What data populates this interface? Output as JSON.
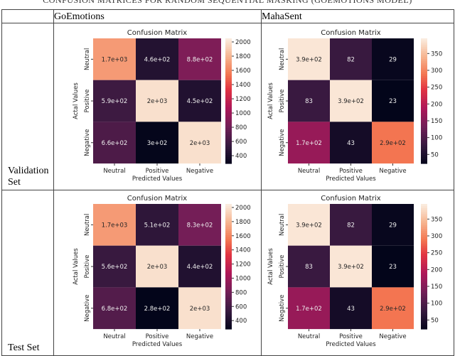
{
  "caption": "CONFUSION MATRICES FOR RANDOM SEQUENTIAL MASKING (GOEMOTIONS MODEL)",
  "columns": [
    "GoEmotions",
    "MahaSent"
  ],
  "rows": [
    "Validation Set",
    "Test Set"
  ],
  "chart_data": [
    {
      "type": "heatmap",
      "dataset": "GoEmotions",
      "split": "Validation Set",
      "title": "Confusion Matrix",
      "xlabel": "Predicted Values",
      "ylabel": "Actal Values",
      "x_categories": [
        "Neutral",
        "Positive",
        "Negative"
      ],
      "y_categories": [
        "Neutral",
        "Positive",
        "Negative"
      ],
      "values": [
        [
          1700,
          460,
          880
        ],
        [
          590,
          2000,
          450
        ],
        [
          660,
          300,
          2000
        ]
      ],
      "annotations": [
        [
          "1.7e+03",
          "4.6e+02",
          "8.8e+02"
        ],
        [
          "5.9e+02",
          "2e+03",
          "4.5e+02"
        ],
        [
          "6.6e+02",
          "3e+02",
          "2e+03"
        ]
      ],
      "colorbar_range": [
        290,
        2050
      ],
      "colorbar_ticks": [
        400,
        600,
        800,
        1000,
        1200,
        1400,
        1600,
        1800,
        2000
      ],
      "colormap": "rocket"
    },
    {
      "type": "heatmap",
      "dataset": "MahaSent",
      "split": "Validation Set",
      "title": "Confusion Matrix",
      "xlabel": "Predicted Values",
      "ylabel": "Actal Values",
      "x_categories": [
        "Neutral",
        "Positive",
        "Negative"
      ],
      "y_categories": [
        "Neutral",
        "Positive",
        "Negative"
      ],
      "values": [
        [
          390,
          82,
          29
        ],
        [
          83,
          390,
          23
        ],
        [
          170,
          43,
          290
        ]
      ],
      "annotations": [
        [
          "3.9e+02",
          "82",
          "29"
        ],
        [
          "83",
          "3.9e+02",
          "23"
        ],
        [
          "1.7e+02",
          "43",
          "2.9e+02"
        ]
      ],
      "colorbar_range": [
        23,
        395
      ],
      "colorbar_ticks": [
        50,
        100,
        150,
        200,
        250,
        300,
        350
      ],
      "colormap": "rocket"
    },
    {
      "type": "heatmap",
      "dataset": "GoEmotions",
      "split": "Test Set",
      "title": "Confusion Matrix",
      "xlabel": "Predicted Values",
      "ylabel": "Actal Values",
      "x_categories": [
        "Neutral",
        "Positive",
        "Negative"
      ],
      "y_categories": [
        "Neutral",
        "Positive",
        "Negative"
      ],
      "values": [
        [
          1700,
          510,
          830
        ],
        [
          560,
          2000,
          440
        ],
        [
          680,
          280,
          2000
        ]
      ],
      "annotations": [
        [
          "1.7e+03",
          "5.1e+02",
          "8.3e+02"
        ],
        [
          "5.6e+02",
          "2e+03",
          "4.4e+02"
        ],
        [
          "6.8e+02",
          "2.8e+02",
          "2e+03"
        ]
      ],
      "colorbar_range": [
        280,
        2050
      ],
      "colorbar_ticks": [
        400,
        600,
        800,
        1000,
        1200,
        1400,
        1600,
        1800,
        2000
      ],
      "colormap": "rocket"
    },
    {
      "type": "heatmap",
      "dataset": "MahaSent",
      "split": "Test Set",
      "title": "Confusion Matrix",
      "xlabel": "Predicted Values",
      "ylabel": "Actal Values",
      "x_categories": [
        "Neutral",
        "Positive",
        "Negative"
      ],
      "y_categories": [
        "Neutral",
        "Positive",
        "Negative"
      ],
      "values": [
        [
          390,
          82,
          29
        ],
        [
          83,
          390,
          23
        ],
        [
          170,
          43,
          290
        ]
      ],
      "annotations": [
        [
          "3.9e+02",
          "82",
          "29"
        ],
        [
          "83",
          "3.9e+02",
          "23"
        ],
        [
          "1.7e+02",
          "43",
          "2.9e+02"
        ]
      ],
      "colorbar_range": [
        23,
        395
      ],
      "colorbar_ticks": [
        50,
        100,
        150,
        200,
        250,
        300,
        350
      ],
      "colormap": "rocket"
    }
  ]
}
